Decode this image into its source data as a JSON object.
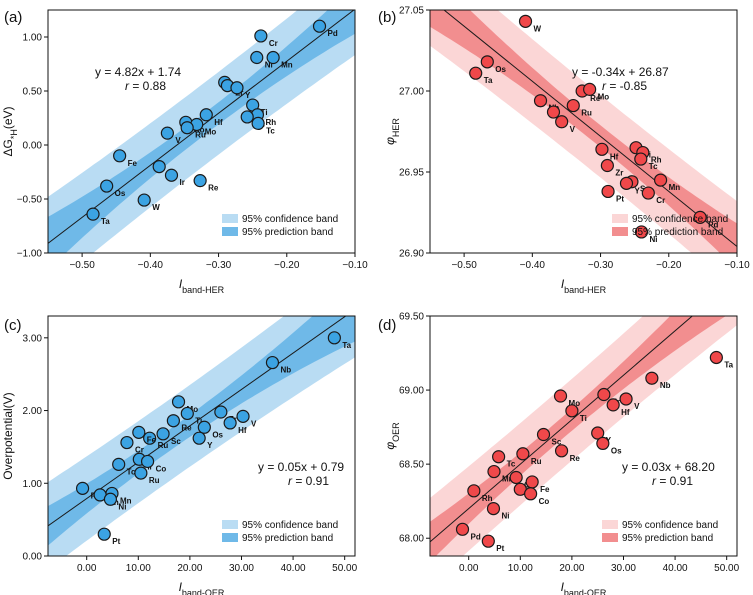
{
  "colors": {
    "blue_marker": "#3ba3e3",
    "blue_pred_band": "#b9dcf3",
    "blue_conf_band": "#6fb9e8",
    "red_marker": "#f0484a",
    "red_pred_band": "#fbd6d6",
    "red_conf_band": "#f28e8f",
    "line": "#1a1a1a"
  },
  "chart_data": [
    {
      "type": "scatter",
      "panel": "(a)",
      "ylabel": "ΔG*H(eV)",
      "xlabel_main": "I",
      "xlabel_sub": "band-HER",
      "xlim": [
        -0.55,
        -0.1
      ],
      "ylim": [
        -1.0,
        1.25
      ],
      "xticks": [
        -0.5,
        -0.4,
        -0.3,
        -0.2,
        -0.1
      ],
      "xtick_labels": [
        "−0.50",
        "−0.40",
        "−0.30",
        "−0.20",
        "−0.10"
      ],
      "yticks": [
        -1.0,
        -0.5,
        0.0,
        0.5,
        1.0
      ],
      "ytick_labels": [
        "−1.00",
        "−0.50",
        "0.00",
        "0.50",
        "1.00"
      ],
      "equation": "y = 4.82x + 1.74",
      "r_text": "r = 0.88",
      "fit": {
        "slope": 4.82,
        "intercept": 1.74
      },
      "theme": "blue",
      "legend": [
        "95% confidence band",
        "95% prediction band"
      ],
      "points": [
        {
          "label": "Pd",
          "x": -0.152,
          "y": 1.1
        },
        {
          "label": "Cr",
          "x": -0.238,
          "y": 1.01
        },
        {
          "label": "Ni",
          "x": -0.244,
          "y": 0.81
        },
        {
          "label": "Mn",
          "x": -0.22,
          "y": 0.81
        },
        {
          "label": "Pt",
          "x": -0.291,
          "y": 0.58
        },
        {
          "label": "Zr",
          "x": -0.287,
          "y": 0.55
        },
        {
          "label": "Y",
          "x": -0.273,
          "y": 0.53
        },
        {
          "label": "Ti",
          "x": -0.25,
          "y": 0.37
        },
        {
          "label": "Rh",
          "x": -0.243,
          "y": 0.28
        },
        {
          "label": "Sc",
          "x": -0.258,
          "y": 0.26
        },
        {
          "label": "Tc",
          "x": -0.242,
          "y": 0.2
        },
        {
          "label": "Co",
          "x": -0.348,
          "y": 0.21
        },
        {
          "label": "Hf",
          "x": -0.318,
          "y": 0.28
        },
        {
          "label": "Mo",
          "x": -0.332,
          "y": 0.19
        },
        {
          "label": "Ru",
          "x": -0.346,
          "y": 0.16
        },
        {
          "label": "V",
          "x": -0.375,
          "y": 0.11
        },
        {
          "label": "Fe",
          "x": -0.445,
          "y": -0.1
        },
        {
          "label": "Nb",
          "x": -0.387,
          "y": -0.2
        },
        {
          "label": "Ir",
          "x": -0.369,
          "y": -0.28
        },
        {
          "label": "Re",
          "x": -0.327,
          "y": -0.33
        },
        {
          "label": "Os",
          "x": -0.464,
          "y": -0.38
        },
        {
          "label": "W",
          "x": -0.409,
          "y": -0.51
        },
        {
          "label": "Ta",
          "x": -0.484,
          "y": -0.64
        }
      ]
    },
    {
      "type": "scatter",
      "panel": "(b)",
      "ylabel": "φHER",
      "xlabel_main": "I",
      "xlabel_sub": "band-HER",
      "xlim": [
        -0.55,
        -0.1
      ],
      "ylim": [
        26.9,
        27.05
      ],
      "xticks": [
        -0.5,
        -0.4,
        -0.3,
        -0.2,
        -0.1
      ],
      "xtick_labels": [
        "−0.50",
        "−0.40",
        "−0.30",
        "−0.20",
        "−0.10"
      ],
      "yticks": [
        26.9,
        26.95,
        27.0,
        27.05
      ],
      "ytick_labels": [
        "26.90",
        "26.95",
        "27.00",
        "27.05"
      ],
      "equation": "y = -0.34x + 26.87",
      "r_text": "r = -0.85",
      "fit": {
        "slope": -0.34,
        "intercept": 26.87
      },
      "theme": "red",
      "legend": [
        "95% confidence band",
        "95% prediction band"
      ],
      "points": [
        {
          "label": "W",
          "x": -0.41,
          "y": 27.043
        },
        {
          "label": "Os",
          "x": -0.466,
          "y": 27.018
        },
        {
          "label": "Ta",
          "x": -0.483,
          "y": 27.011
        },
        {
          "label": "Re",
          "x": -0.327,
          "y": 27.0
        },
        {
          "label": "Mo",
          "x": -0.316,
          "y": 27.001
        },
        {
          "label": "Nb",
          "x": -0.388,
          "y": 26.994
        },
        {
          "label": "Ru",
          "x": -0.34,
          "y": 26.991
        },
        {
          "label": "Ir",
          "x": -0.369,
          "y": 26.987
        },
        {
          "label": "V",
          "x": -0.357,
          "y": 26.981
        },
        {
          "label": "Hf",
          "x": -0.298,
          "y": 26.964
        },
        {
          "label": "Ti",
          "x": -0.248,
          "y": 26.965
        },
        {
          "label": "Rh",
          "x": -0.238,
          "y": 26.962
        },
        {
          "label": "Tc",
          "x": -0.241,
          "y": 26.958
        },
        {
          "label": "Zr",
          "x": -0.29,
          "y": 26.954
        },
        {
          "label": "Mn",
          "x": -0.212,
          "y": 26.945
        },
        {
          "label": "Sc",
          "x": -0.254,
          "y": 26.944
        },
        {
          "label": "Y",
          "x": -0.262,
          "y": 26.943
        },
        {
          "label": "Pt",
          "x": -0.289,
          "y": 26.938
        },
        {
          "label": "Cr",
          "x": -0.23,
          "y": 26.937
        },
        {
          "label": "Pd",
          "x": -0.154,
          "y": 26.922
        },
        {
          "label": "Ni",
          "x": -0.24,
          "y": 26.913
        }
      ]
    },
    {
      "type": "scatter",
      "panel": "(c)",
      "ylabel": "Overpotential(V)",
      "xlabel_main": "I",
      "xlabel_sub": "band-OER",
      "xlim": [
        -7.5,
        52.0
      ],
      "ylim": [
        0.0,
        3.3
      ],
      "xticks": [
        0,
        10,
        20,
        30,
        40,
        50
      ],
      "xtick_labels": [
        "0.00",
        "10.00",
        "20.00",
        "30.00",
        "40.00",
        "50.00"
      ],
      "yticks": [
        0,
        1,
        2,
        3
      ],
      "ytick_labels": [
        "0.00",
        "1.00",
        "2.00",
        "3.00"
      ],
      "equation": "y = 0.05x + 0.79",
      "r_text": "r = 0.91",
      "fit": {
        "slope": 0.05,
        "intercept": 0.79
      },
      "theme": "blue",
      "legend": [
        "95% confidence band",
        "95% prediction band"
      ],
      "points": [
        {
          "label": "Ta",
          "x": 48.0,
          "y": 3.0
        },
        {
          "label": "Nb",
          "x": 36.0,
          "y": 2.66
        },
        {
          "label": "Mo",
          "x": 17.8,
          "y": 2.12
        },
        {
          "label": "Zr",
          "x": 26.0,
          "y": 1.98
        },
        {
          "label": "Ti",
          "x": 19.5,
          "y": 1.96
        },
        {
          "label": "Re",
          "x": 16.8,
          "y": 1.86
        },
        {
          "label": "V",
          "x": 30.3,
          "y": 1.92
        },
        {
          "label": "Hf",
          "x": 27.8,
          "y": 1.83
        },
        {
          "label": "Os",
          "x": 22.8,
          "y": 1.77
        },
        {
          "label": "Y",
          "x": 21.8,
          "y": 1.62
        },
        {
          "label": "Sc",
          "x": 14.8,
          "y": 1.68
        },
        {
          "label": "Ru",
          "x": 12.2,
          "y": 1.62
        },
        {
          "label": "Fe",
          "x": 10.1,
          "y": 1.7
        },
        {
          "label": "Cr",
          "x": 7.8,
          "y": 1.56
        },
        {
          "label": "Ir",
          "x": 10.2,
          "y": 1.33
        },
        {
          "label": "Co",
          "x": 11.8,
          "y": 1.3
        },
        {
          "label": "Tc",
          "x": 6.2,
          "y": 1.26
        },
        {
          "label": "Ru2",
          "x": 10.5,
          "y": 1.14
        },
        {
          "label": "Pd",
          "x": -0.8,
          "y": 0.93
        },
        {
          "label": "Mn",
          "x": 4.9,
          "y": 0.86
        },
        {
          "label": "Rh",
          "x": 2.6,
          "y": 0.84
        },
        {
          "label": "Ni",
          "x": 4.6,
          "y": 0.78
        },
        {
          "label": "Pt",
          "x": 3.4,
          "y": 0.3
        }
      ],
      "point_label_display": {
        "Ru2": "Ru"
      }
    },
    {
      "type": "scatter",
      "panel": "(d)",
      "ylabel": "φOER",
      "xlabel_main": "I",
      "xlabel_sub": "band-OER",
      "xlim": [
        -7.5,
        52.0
      ],
      "ylim": [
        67.88,
        69.5
      ],
      "xticks": [
        0,
        10,
        20,
        30,
        40,
        50
      ],
      "xtick_labels": [
        "0.00",
        "10.00",
        "20.00",
        "30.00",
        "40.00",
        "50.00"
      ],
      "yticks": [
        68.0,
        68.5,
        69.0,
        69.5
      ],
      "ytick_labels": [
        "68.00",
        "68.50",
        "69.00",
        "69.50"
      ],
      "equation": "y = 0.03x + 68.20",
      "r_text": "r = 0.91",
      "fit": {
        "slope": 0.03,
        "intercept": 68.2
      },
      "theme": "red",
      "legend": [
        "95% confidence band",
        "95% prediction band"
      ],
      "points": [
        {
          "label": "Ta",
          "x": 48.0,
          "y": 69.22
        },
        {
          "label": "Nb",
          "x": 35.5,
          "y": 69.08
        },
        {
          "label": "Mo",
          "x": 17.8,
          "y": 68.96
        },
        {
          "label": "Zr",
          "x": 26.2,
          "y": 68.97
        },
        {
          "label": "V",
          "x": 30.5,
          "y": 68.94
        },
        {
          "label": "Hf",
          "x": 28.0,
          "y": 68.9
        },
        {
          "label": "Ti",
          "x": 20.0,
          "y": 68.86
        },
        {
          "label": "Sc",
          "x": 14.5,
          "y": 68.7
        },
        {
          "label": "Y",
          "x": 25.0,
          "y": 68.71
        },
        {
          "label": "Os",
          "x": 26.0,
          "y": 68.64
        },
        {
          "label": "Tc",
          "x": 5.8,
          "y": 68.55
        },
        {
          "label": "Ru",
          "x": 10.5,
          "y": 68.57
        },
        {
          "label": "Re",
          "x": 18.0,
          "y": 68.59
        },
        {
          "label": "Mn",
          "x": 4.9,
          "y": 68.45
        },
        {
          "label": "Cr",
          "x": 9.2,
          "y": 68.41
        },
        {
          "label": "Fe",
          "x": 12.3,
          "y": 68.38
        },
        {
          "label": "Rh",
          "x": 1.0,
          "y": 68.32
        },
        {
          "label": "Ir",
          "x": 10.0,
          "y": 68.33
        },
        {
          "label": "Co",
          "x": 12.0,
          "y": 68.3
        },
        {
          "label": "Ni",
          "x": 4.8,
          "y": 68.2
        },
        {
          "label": "Pd",
          "x": -1.2,
          "y": 68.06
        },
        {
          "label": "Pt",
          "x": 3.8,
          "y": 67.98
        }
      ]
    }
  ]
}
